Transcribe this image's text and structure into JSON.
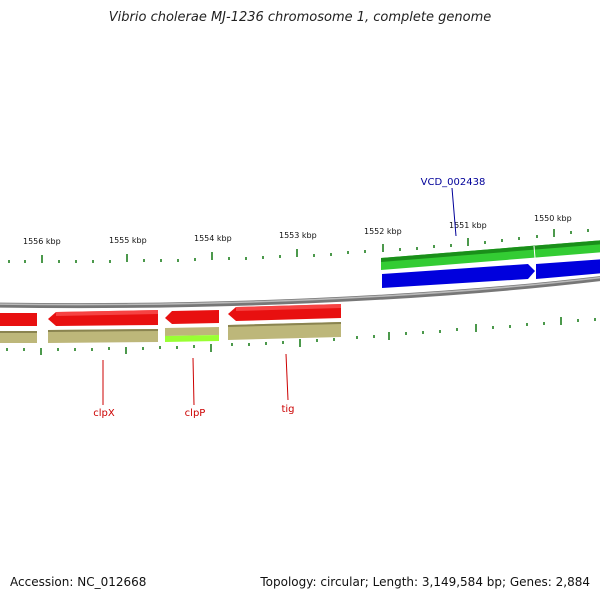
{
  "title": "Vibrio cholerae MJ-1236 chromosome 1, complete genome",
  "footer": {
    "accession": "Accession: NC_012668",
    "summary": "Topology: circular; Length: 3,149,584 bp; Genes: 2,884"
  },
  "colors": {
    "backbone": "#8a8a8a",
    "forward_gene": "#33cc33",
    "forward_cds": "#0000dd",
    "reverse_gene": "#e81010",
    "reverse_cds": "#bdb77a",
    "highlight_cds": "#99ff33",
    "tick": "#117711",
    "forward_label": "#000099",
    "reverse_label": "#cc0000"
  },
  "chart_data": {
    "type": "genome-map",
    "scale_labels": [
      "1556 kbp",
      "1555 kbp",
      "1554 kbp",
      "1553 kbp",
      "1552 kbp",
      "1551 kbp",
      "1550 kbp"
    ],
    "features": [
      {
        "name": "VCD_002438",
        "strand": "forward"
      },
      {
        "name": "clpX",
        "strand": "reverse"
      },
      {
        "name": "clpP",
        "strand": "reverse"
      },
      {
        "name": "tig",
        "strand": "reverse"
      }
    ]
  }
}
